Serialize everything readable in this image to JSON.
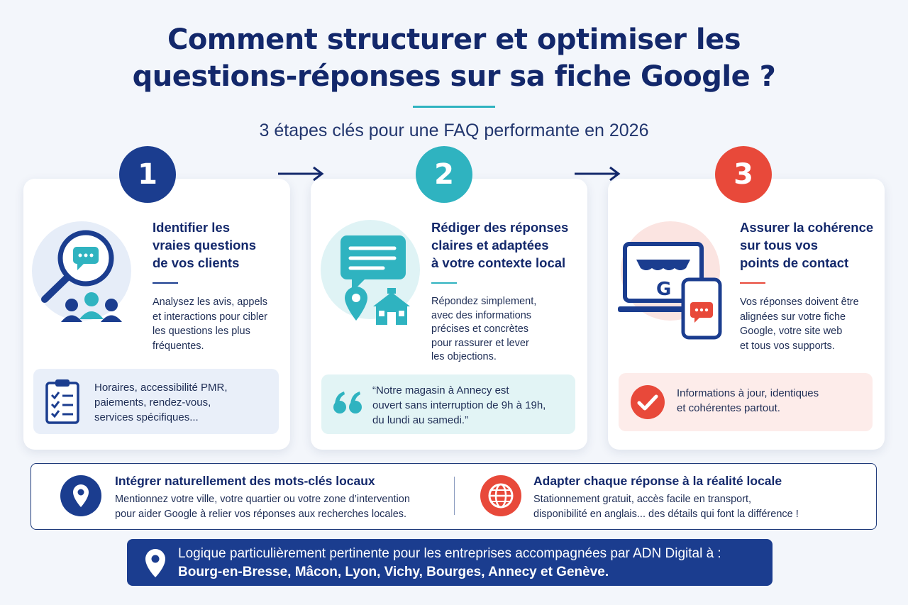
{
  "header": {
    "title_line1": "Comment structurer et optimiser les",
    "title_line2": "questions-réponses sur sa fiche Google ?",
    "subtitle": "3 étapes clés pour une FAQ performante en 2026"
  },
  "colors": {
    "navy": "#1b3d8f",
    "teal": "#2fb3c0",
    "red": "#e8493a",
    "title": "#13286b"
  },
  "steps": [
    {
      "number": "1",
      "title_lines": [
        "Identifier les",
        "vraies questions",
        "de vos clients"
      ],
      "text_lines": [
        "Analysez les avis, appels",
        "et interactions pour cibler",
        "les questions les plus",
        "fréquentes."
      ],
      "box_icon": "clipboard-checklist-icon",
      "box_lines": [
        "Horaires, accessibilité PMR,",
        "paiements, rendez-vous,",
        "services spécifiques..."
      ],
      "illustration": "magnifier-chat-people-icon"
    },
    {
      "number": "2",
      "title_lines": [
        "Rédiger des réponses",
        "claires et adaptées",
        "à votre contexte local"
      ],
      "text_lines": [
        "Répondez simplement,",
        "avec des informations",
        "précises et concrètes",
        "pour rassurer et lever",
        "les objections."
      ],
      "box_icon": "quote-icon",
      "box_lines": [
        "“Notre magasin à Annecy est",
        "ouvert sans interruption de 9h à 19h,",
        "du lundi au samedi.”"
      ],
      "illustration": "chat-bubble-store-pin-icon"
    },
    {
      "number": "3",
      "title_lines": [
        "Assurer la cohérence",
        "sur tous vos",
        "points de contact"
      ],
      "text_lines": [
        "Vos réponses doivent être",
        "alignées sur votre fiche",
        "Google, votre site web",
        "et tous vos supports."
      ],
      "box_icon": "check-circle-icon",
      "box_lines": [
        "Informations à jour, identiques",
        "et cohérentes partout."
      ],
      "illustration": "laptop-phone-google-icon"
    }
  ],
  "band": {
    "left": {
      "icon": "location-pin-icon",
      "title": "Intégrer naturellement des mots-clés locaux",
      "lines": [
        "Mentionnez votre ville, votre quartier ou votre zone d’intervention",
        "pour aider Google à relier vos réponses aux recherches locales."
      ]
    },
    "right": {
      "icon": "globe-icon",
      "title": "Adapter chaque réponse à la réalité locale",
      "lines": [
        "Stationnement gratuit, accès facile en transport,",
        "disponibilité en anglais... des détails qui font la différence !"
      ]
    }
  },
  "footer": {
    "icon": "location-pin-icon",
    "line1": "Logique particulièrement pertinente pour les entreprises accompagnées par ADN Digital à :",
    "line2": "Bourg-en-Bresse, Mâcon, Lyon, Vichy, Bourges, Annecy et Genève."
  }
}
